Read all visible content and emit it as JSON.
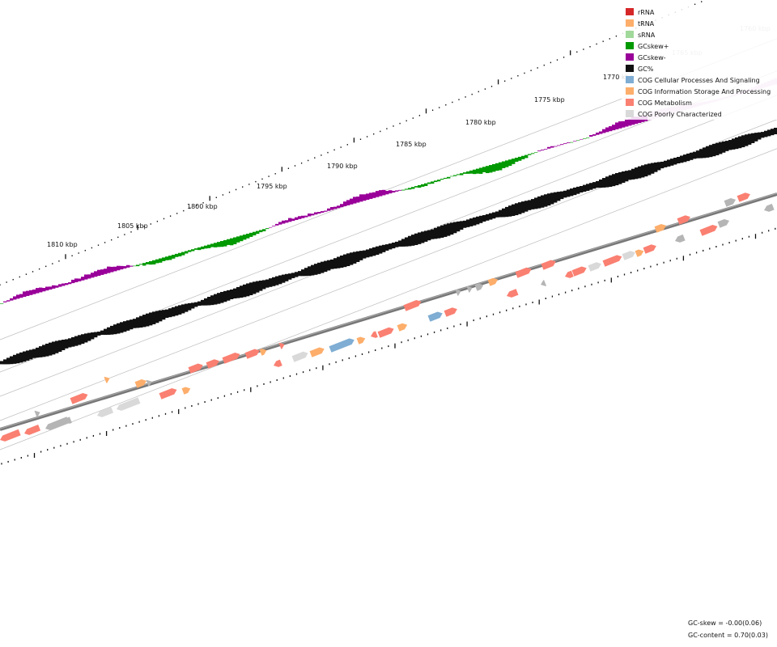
{
  "ticks": [
    {
      "label": "1760 kbp"
    },
    {
      "label": "1765 kbp"
    },
    {
      "label": "1770 kbp"
    },
    {
      "label": "1775 kbp"
    },
    {
      "label": "1780 kbp"
    },
    {
      "label": "1785 kbp"
    },
    {
      "label": "1790 kbp"
    },
    {
      "label": "1795 kbp"
    },
    {
      "label": "1800 kbp"
    },
    {
      "label": "1805 kbp"
    },
    {
      "label": "1810 kbp"
    }
  ],
  "legend": [
    {
      "label": "rRNA",
      "color": "#d62728"
    },
    {
      "label": "tRNA",
      "color": "#fdae6b"
    },
    {
      "label": "sRNA",
      "color": "#a1d99b"
    },
    {
      "label": "GCskew+",
      "color": "#009900"
    },
    {
      "label": "GCskew-",
      "color": "#990099"
    },
    {
      "label": "GC%",
      "color": "#111111"
    },
    {
      "label": "COG Cellular Processes And Signaling",
      "color": "#7fadd3"
    },
    {
      "label": "COG Information Storage And Processing",
      "color": "#fdae6b"
    },
    {
      "label": "COG Metabolism",
      "color": "#fa8072"
    },
    {
      "label": "COG Poorly Characterized",
      "color": "#d9d9d9"
    }
  ],
  "stats": {
    "gc_skew": "GC-skew = -0.00(0.06)",
    "gc_content": "GC-content = 0.70(0.03)"
  },
  "colors": {
    "gc_plus": "#009900",
    "gc_minus": "#990099",
    "gc_content": "#111111",
    "cog_cellular": "#7fadd3",
    "cog_info": "#fdae6b",
    "cog_metabolism": "#fa8072",
    "cog_poorly": "#d9d9d9",
    "unassigned": "#b5b5b5",
    "backbone": "#777777"
  }
}
